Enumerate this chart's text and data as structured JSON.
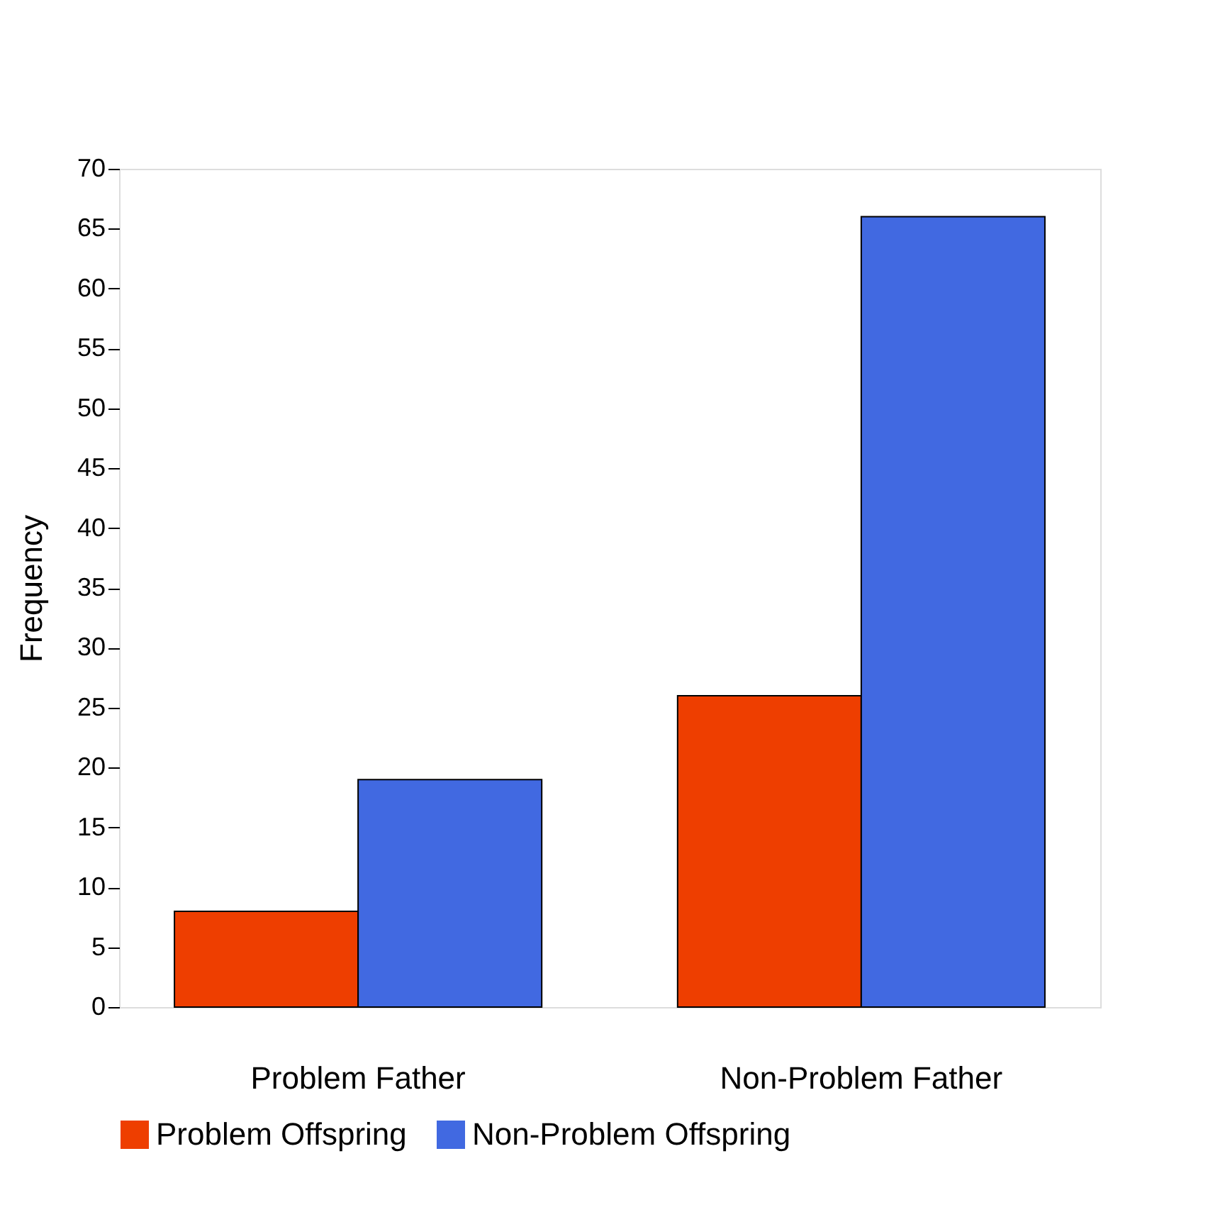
{
  "chart_data": {
    "type": "bar",
    "ylabel": "Frequency",
    "categories": [
      "Problem Father",
      "Non-Problem Father"
    ],
    "series": [
      {
        "name": "Problem Offspring",
        "color": "#ee3e00",
        "values": [
          8,
          26
        ]
      },
      {
        "name": "Non-Problem Offspring",
        "color": "#4169e1",
        "values": [
          19,
          66
        ]
      }
    ],
    "ylim": [
      0,
      70
    ],
    "yticks": [
      0,
      5,
      10,
      15,
      20,
      25,
      30,
      35,
      40,
      45,
      50,
      55,
      60,
      65,
      70
    ],
    "grid": false,
    "legend": "bottom"
  }
}
